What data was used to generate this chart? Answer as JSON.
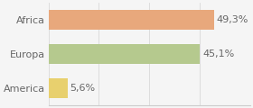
{
  "categories": [
    "Africa",
    "Europa",
    "America"
  ],
  "values": [
    49.3,
    45.1,
    5.6
  ],
  "labels": [
    "49,3%",
    "45,1%",
    "5,6%"
  ],
  "bar_colors": [
    "#e8a87c",
    "#b5c98e",
    "#e8d06e"
  ],
  "background_color": "#f5f5f5",
  "xlim": [
    0,
    60
  ],
  "bar_height": 0.58,
  "label_fontsize": 8.0,
  "tick_fontsize": 8.0
}
